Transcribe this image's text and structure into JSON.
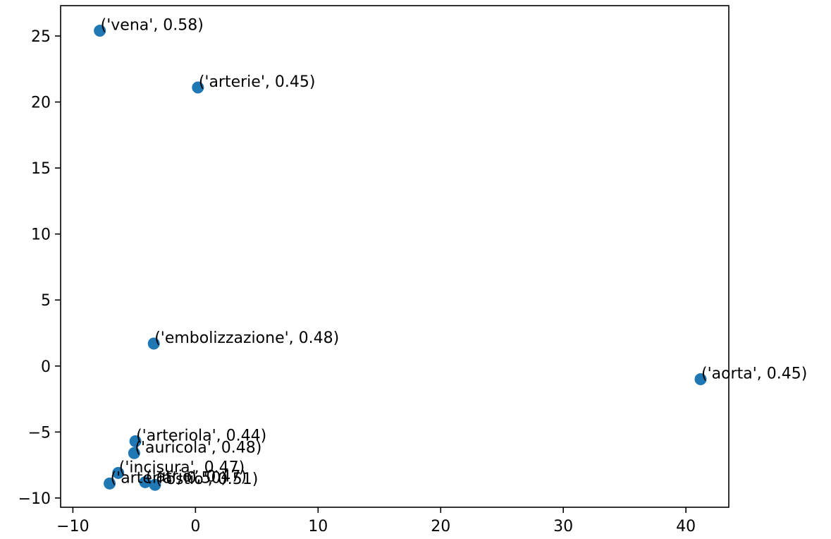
{
  "chart_data": {
    "type": "scatter",
    "title": "",
    "xlabel": "",
    "ylabel": "",
    "xlim": [
      -11,
      43.5
    ],
    "ylim": [
      -10.7,
      27.3
    ],
    "xticks": [
      -10,
      0,
      10,
      20,
      30,
      40
    ],
    "yticks": [
      -10,
      -5,
      0,
      5,
      10,
      15,
      20,
      25
    ],
    "xtick_labels": [
      "−10",
      "0",
      "10",
      "20",
      "30",
      "40"
    ],
    "ytick_labels": [
      "−10",
      "−5",
      "0",
      "5",
      "10",
      "15",
      "20",
      "25"
    ],
    "grid": false,
    "point_color": "#1f77b4",
    "points": [
      {
        "label": "('vena', 0.58)",
        "x": -7.8,
        "y": 25.4
      },
      {
        "label": "('arterie', 0.45)",
        "x": 0.2,
        "y": 21.1
      },
      {
        "label": "('embolizzazione', 0.48)",
        "x": -3.4,
        "y": 1.7
      },
      {
        "label": "('aorta', 0.45)",
        "x": 41.2,
        "y": -1.0
      },
      {
        "label": "('arteriola', 0.44)",
        "x": -4.9,
        "y": -5.7
      },
      {
        "label": "('auricola', 0.48)",
        "x": -5.0,
        "y": -6.6
      },
      {
        "label": "('incisura', 0.47)",
        "x": -6.3,
        "y": -8.1
      },
      {
        "label": "('arteria', 0.50)",
        "x": -7.0,
        "y": -8.9
      },
      {
        "label": "('atrio', 0.47)",
        "x": -4.1,
        "y": -8.8
      },
      {
        "label": "('ostio', 0.51)",
        "x": -3.3,
        "y": -9.0
      }
    ]
  }
}
